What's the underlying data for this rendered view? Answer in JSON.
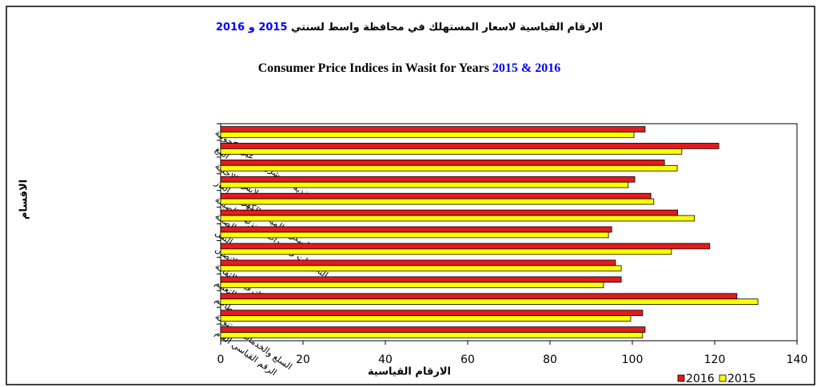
{
  "chart_data": {
    "type": "bar",
    "orientation": "horizontal",
    "title": {
      "ar_text": "الارقام القياسية لاسعار المستهلك في محافظة واسط لسنتي",
      "ar_years": "2015 و 2016",
      "en_text": "Consumer Price Indices in Wasit for Years",
      "en_years": "2015 & 2016"
    },
    "y_label": "الاقسام",
    "x_label": "الارقام القياسية",
    "categories": [
      "الاغذية والمشروبات غير الكحولية",
      "التبغ",
      "الملابس والاحذية",
      "السكن ، المياه ، الكهرباء ، الغاز",
      "التجهيزات والمعدات المنزلية والصيانة",
      "الصحة",
      "النقل",
      "الاتصال",
      "الترفيه والثقافة",
      "التعليم",
      "المطاعم",
      "السلع والخدمات المتنوعة",
      "الرقم القياسي العام"
    ],
    "series": [
      {
        "name": "2016",
        "color": "#e41a1c",
        "values": [
          103.1,
          121,
          107.8,
          100.6,
          104.5,
          111,
          95,
          118.8,
          95.9,
          97.3,
          125.4,
          102.5,
          103.1
        ]
      },
      {
        "name": "2015",
        "color": "#ffff00",
        "values": [
          100.4,
          112,
          110.9,
          99,
          105.2,
          115.1,
          94.2,
          109.5,
          97.3,
          93,
          130.5,
          99.6,
          102.5
        ]
      }
    ],
    "xlim": [
      0,
      140
    ],
    "xticks": [
      0,
      20,
      40,
      60,
      80,
      100,
      120,
      140
    ],
    "legend": "bottom-right",
    "grid": false
  }
}
